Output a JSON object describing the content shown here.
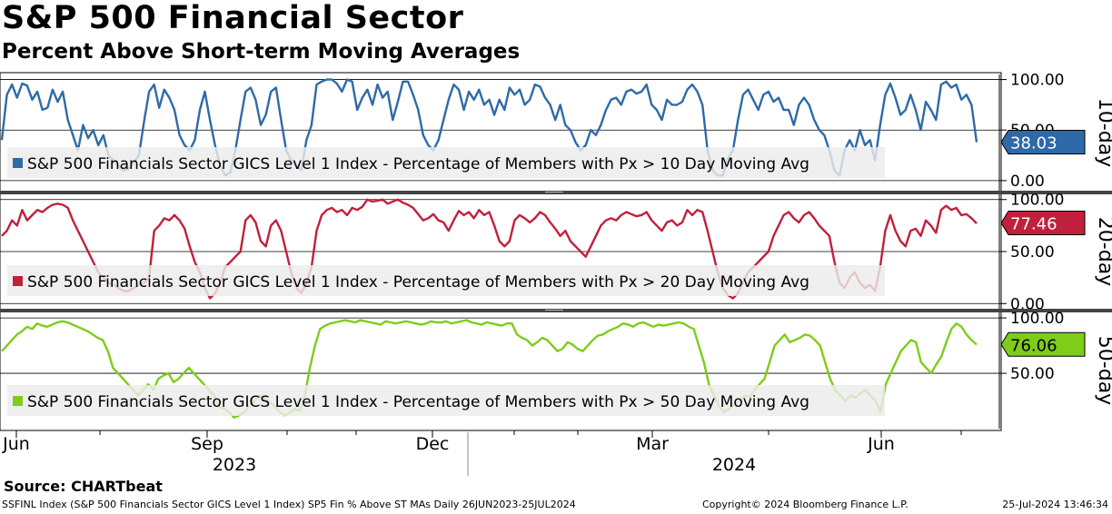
{
  "title": "S&P 500 Financial Sector",
  "subtitle": "Percent Above Short-term Moving Averages",
  "source": "Source: CHARTbeat",
  "footer": {
    "left": "SSFINL Index (S&P 500 Financials Sector GICS Level 1 Index) SP5 Fin % Above ST MAs  Daily 26JUN2023-25JUL2024",
    "center": "Copyright© 2024 Bloomberg Finance L.P.",
    "right": "25-Jul-2024 13:46:34"
  },
  "colors": {
    "series_10": "#2e6aa8",
    "series_20": "#c0203b",
    "series_50": "#7fcc19",
    "grid": "#000000"
  },
  "chart_data": [
    {
      "type": "line",
      "name": "10-day",
      "side_label": "10-day",
      "legend": "S&P 500 Financials Sector GICS Level 1 Index - Percentage of Members with Px > 10 Day Moving Avg",
      "last_value": 38.03,
      "last_label": "38.03",
      "ylim": [
        -10,
        105
      ],
      "yticks": [
        0,
        50,
        100
      ],
      "yticklabels": [
        "0.00",
        "50.00",
        "100.00"
      ],
      "values": [
        40,
        85,
        95,
        82,
        96,
        94,
        80,
        88,
        70,
        72,
        90,
        78,
        88,
        60,
        45,
        30,
        55,
        42,
        50,
        35,
        45,
        25,
        20,
        15,
        10,
        12,
        18,
        25,
        58,
        88,
        95,
        72,
        90,
        82,
        70,
        45,
        35,
        30,
        40,
        70,
        88,
        60,
        35,
        15,
        5,
        8,
        30,
        60,
        88,
        92,
        80,
        55,
        65,
        88,
        92,
        60,
        30,
        20,
        15,
        10,
        40,
        55,
        95,
        98,
        100,
        100,
        96,
        88,
        100,
        98,
        70,
        82,
        90,
        75,
        95,
        82,
        88,
        60,
        78,
        98,
        98,
        85,
        70,
        45,
        35,
        30,
        40,
        60,
        80,
        95,
        90,
        70,
        88,
        80,
        90,
        75,
        80,
        65,
        80,
        70,
        92,
        85,
        90,
        75,
        80,
        95,
        93,
        82,
        75,
        60,
        75,
        55,
        50,
        38,
        30,
        35,
        50,
        45,
        55,
        70,
        80,
        82,
        75,
        88,
        90,
        86,
        88,
        95,
        75,
        70,
        60,
        80,
        75,
        75,
        78,
        90,
        95,
        88,
        75,
        30,
        10,
        5,
        5,
        22,
        30,
        60,
        85,
        90,
        80,
        70,
        85,
        88,
        78,
        82,
        70,
        70,
        55,
        75,
        82,
        75,
        60,
        50,
        45,
        30,
        10,
        5,
        30,
        40,
        30,
        50,
        35,
        40,
        20,
        55,
        85,
        96,
        82,
        65,
        70,
        85,
        70,
        50,
        78,
        70,
        60,
        95,
        98,
        92,
        95,
        80,
        85,
        75,
        38
      ]
    },
    {
      "type": "line",
      "name": "20-day",
      "side_label": "20-day",
      "legend": "S&P 500 Financials Sector GICS Level 1 Index - Percentage of Members with Px > 20 Day Moving Avg",
      "last_value": 77.46,
      "last_label": "77.46",
      "ylim": [
        -5,
        105
      ],
      "yticks": [
        0,
        50,
        100
      ],
      "yticklabels": [
        "0.00",
        "50.00",
        "100.00"
      ],
      "values": [
        65,
        70,
        80,
        75,
        90,
        80,
        85,
        90,
        88,
        92,
        95,
        96,
        95,
        92,
        80,
        70,
        60,
        50,
        40,
        30,
        25,
        20,
        18,
        15,
        12,
        12,
        15,
        18,
        20,
        25,
        70,
        75,
        82,
        80,
        85,
        80,
        72,
        55,
        40,
        30,
        15,
        5,
        10,
        20,
        35,
        40,
        45,
        50,
        80,
        85,
        78,
        60,
        55,
        75,
        80,
        70,
        50,
        30,
        15,
        10,
        20,
        35,
        70,
        85,
        90,
        92,
        88,
        90,
        85,
        92,
        90,
        93,
        100,
        98,
        99,
        100,
        96,
        98,
        100,
        97,
        95,
        92,
        86,
        80,
        82,
        86,
        80,
        78,
        70,
        80,
        89,
        85,
        88,
        82,
        90,
        85,
        88,
        75,
        60,
        55,
        60,
        80,
        85,
        82,
        78,
        82,
        88,
        85,
        78,
        72,
        65,
        70,
        60,
        55,
        50,
        45,
        55,
        65,
        75,
        80,
        82,
        80,
        85,
        88,
        86,
        84,
        85,
        88,
        80,
        75,
        70,
        78,
        80,
        75,
        78,
        90,
        85,
        90,
        88,
        70,
        50,
        30,
        15,
        8,
        5,
        10,
        20,
        30,
        35,
        40,
        45,
        50,
        65,
        75,
        85,
        88,
        82,
        78,
        85,
        88,
        82,
        75,
        70,
        65,
        40,
        20,
        15,
        25,
        30,
        20,
        15,
        18,
        12,
        35,
        70,
        85,
        70,
        60,
        55,
        70,
        72,
        65,
        80,
        75,
        68,
        90,
        94,
        90,
        92,
        85,
        86,
        82,
        77
      ]
    },
    {
      "type": "line",
      "name": "50-day",
      "side_label": "50-day",
      "legend": "S&P 500 Financials Sector GICS Level 1 Index - Percentage of Members with Px > 50 Day Moving Avg",
      "last_value": 76.06,
      "last_label": "76.06",
      "ylim": [
        0,
        105
      ],
      "yticks": [
        50,
        100
      ],
      "yticklabels": [
        "50.00",
        "100.00"
      ],
      "values": [
        70,
        75,
        80,
        85,
        88,
        92,
        90,
        95,
        93,
        92,
        94,
        96,
        97,
        96,
        94,
        92,
        90,
        88,
        85,
        82,
        80,
        70,
        55,
        50,
        45,
        40,
        35,
        30,
        35,
        40,
        35,
        45,
        48,
        50,
        42,
        45,
        50,
        55,
        50,
        45,
        40,
        35,
        30,
        20,
        18,
        15,
        10,
        12,
        15,
        20,
        25,
        30,
        28,
        24,
        20,
        15,
        12,
        14,
        18,
        16,
        30,
        55,
        75,
        90,
        93,
        95,
        96,
        97,
        98,
        97,
        96,
        98,
        97,
        96,
        95,
        94,
        97,
        96,
        95,
        96,
        97,
        96,
        95,
        94,
        95,
        97,
        96,
        96,
        97,
        95,
        96,
        97,
        98,
        96,
        95,
        94,
        96,
        95,
        94,
        93,
        95,
        95,
        85,
        82,
        80,
        75,
        78,
        82,
        80,
        75,
        70,
        72,
        78,
        76,
        72,
        70,
        75,
        80,
        84,
        85,
        88,
        90,
        92,
        95,
        94,
        92,
        95,
        96,
        94,
        92,
        94,
        93,
        94,
        95,
        96,
        95,
        92,
        90,
        75,
        60,
        40,
        30,
        20,
        15,
        18,
        22,
        25,
        30,
        28,
        35,
        40,
        45,
        60,
        75,
        80,
        85,
        78,
        80,
        82,
        85,
        84,
        80,
        75,
        60,
        45,
        35,
        30,
        25,
        30,
        28,
        32,
        35,
        30,
        25,
        15,
        40,
        50,
        60,
        70,
        75,
        80,
        78,
        60,
        55,
        50,
        58,
        65,
        78,
        90,
        95,
        92,
        85,
        80,
        76
      ]
    }
  ],
  "xaxis": {
    "month_labels": [
      "Jun",
      "Sep",
      "Dec",
      "Mar",
      "Jun"
    ],
    "year_labels": [
      "2023",
      "2024"
    ]
  }
}
